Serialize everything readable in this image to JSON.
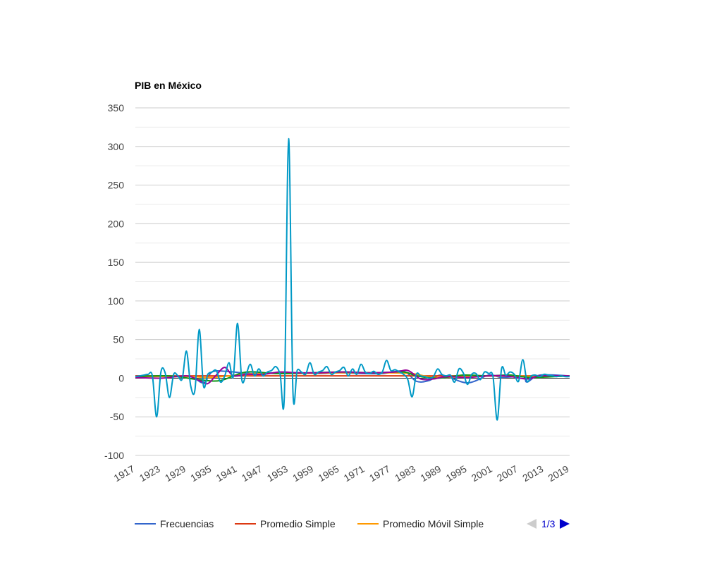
{
  "chart_data": {
    "type": "line",
    "title": "PIB en México",
    "xlabel": "",
    "ylabel": "",
    "xlim": [
      1917,
      2019
    ],
    "ylim": [
      -100,
      350
    ],
    "yticks": [
      -100,
      -50,
      0,
      50,
      100,
      150,
      200,
      250,
      300,
      350
    ],
    "xticks": [
      1917,
      1923,
      1929,
      1935,
      1941,
      1947,
      1953,
      1959,
      1965,
      1971,
      1977,
      1983,
      1989,
      1995,
      2001,
      2007,
      2013,
      2019
    ],
    "grid": true,
    "legend_position": "bottom",
    "legend": {
      "entries": [
        "Frecuencias",
        "Promedio Simple",
        "Promedio Móvil Simple"
      ],
      "page_label": "1/3"
    },
    "series": [
      {
        "name": "Frecuencias",
        "color": "#3366cc",
        "points": [
          [
            1917,
            3
          ],
          [
            1920,
            3
          ],
          [
            1925,
            2
          ],
          [
            1930,
            2
          ],
          [
            1933,
            -6
          ],
          [
            1935,
            8
          ],
          [
            1938,
            9
          ],
          [
            1942,
            7
          ],
          [
            1945,
            6
          ],
          [
            1950,
            7
          ],
          [
            1955,
            7
          ],
          [
            1960,
            6
          ],
          [
            1965,
            7
          ],
          [
            1970,
            6
          ],
          [
            1975,
            6
          ],
          [
            1980,
            9
          ],
          [
            1983,
            -4
          ],
          [
            1986,
            -3
          ],
          [
            1989,
            4
          ],
          [
            1995,
            -6
          ],
          [
            2000,
            4
          ],
          [
            2003,
            1
          ],
          [
            2008,
            2
          ],
          [
            2009,
            -5
          ],
          [
            2012,
            4
          ],
          [
            2019,
            3
          ]
        ]
      },
      {
        "name": "Promedio Simple",
        "color": "#dc3912",
        "points": [
          [
            1917,
            3
          ],
          [
            2019,
            3
          ]
        ]
      },
      {
        "name": "Promedio Móvil Simple",
        "color": "#ff9900",
        "points": [
          [
            1917,
            2
          ],
          [
            1930,
            2
          ],
          [
            1935,
            1
          ],
          [
            1945,
            6
          ],
          [
            1955,
            6
          ],
          [
            1965,
            7
          ],
          [
            1975,
            7
          ],
          [
            1982,
            6
          ],
          [
            1987,
            1
          ],
          [
            1995,
            2
          ],
          [
            2005,
            3
          ],
          [
            2012,
            2
          ],
          [
            2019,
            3
          ]
        ]
      },
      {
        "color": "#109618",
        "points": [
          [
            1917,
            2
          ],
          [
            1925,
            3
          ],
          [
            1932,
            -2
          ],
          [
            1937,
            -3
          ],
          [
            1943,
            8
          ],
          [
            1950,
            6
          ],
          [
            1958,
            7
          ],
          [
            1966,
            8
          ],
          [
            1973,
            7
          ],
          [
            1980,
            8
          ],
          [
            1983,
            3
          ],
          [
            1988,
            0
          ],
          [
            1994,
            4
          ],
          [
            2000,
            3
          ],
          [
            2005,
            4
          ],
          [
            2010,
            1
          ],
          [
            2019,
            3
          ]
        ]
      },
      {
        "color": "#990099",
        "points": [
          [
            1917,
            1
          ],
          [
            1923,
            0
          ],
          [
            1929,
            3
          ],
          [
            1932,
            -3
          ],
          [
            1934,
            -7
          ],
          [
            1936,
            4
          ],
          [
            1938,
            14
          ],
          [
            1940,
            3
          ],
          [
            1943,
            5
          ],
          [
            1947,
            5
          ],
          [
            1951,
            8
          ],
          [
            1955,
            7
          ],
          [
            1960,
            7
          ],
          [
            1966,
            8
          ],
          [
            1972,
            7
          ],
          [
            1978,
            8
          ],
          [
            1981,
            10
          ],
          [
            1984,
            -1
          ],
          [
            1987,
            -1
          ],
          [
            1990,
            2
          ],
          [
            1995,
            1
          ],
          [
            2000,
            3
          ],
          [
            2004,
            3
          ],
          [
            2009,
            -1
          ],
          [
            2012,
            3
          ],
          [
            2019,
            3
          ]
        ]
      },
      {
        "color": "#0099c6",
        "points": [
          [
            1917,
            2
          ],
          [
            1919,
            4
          ],
          [
            1920,
            5
          ],
          [
            1921,
            3
          ],
          [
            1922,
            -50
          ],
          [
            1923,
            8
          ],
          [
            1924,
            7
          ],
          [
            1925,
            -25
          ],
          [
            1926,
            5
          ],
          [
            1927,
            3
          ],
          [
            1928,
            -1
          ],
          [
            1929,
            35
          ],
          [
            1930,
            -10
          ],
          [
            1931,
            -15
          ],
          [
            1932,
            63
          ],
          [
            1933,
            -10
          ],
          [
            1934,
            5
          ],
          [
            1935,
            8
          ],
          [
            1936,
            10
          ],
          [
            1937,
            -5
          ],
          [
            1938,
            3
          ],
          [
            1939,
            20
          ],
          [
            1940,
            2
          ],
          [
            1941,
            71
          ],
          [
            1942,
            -2
          ],
          [
            1943,
            5
          ],
          [
            1944,
            18
          ],
          [
            1945,
            3
          ],
          [
            1946,
            12
          ],
          [
            1947,
            3
          ],
          [
            1948,
            8
          ],
          [
            1949,
            10
          ],
          [
            1950,
            15
          ],
          [
            1951,
            5
          ],
          [
            1952,
            -22
          ],
          [
            1953,
            310
          ],
          [
            1954,
            -16
          ],
          [
            1955,
            10
          ],
          [
            1956,
            8
          ],
          [
            1957,
            5
          ],
          [
            1958,
            20
          ],
          [
            1959,
            5
          ],
          [
            1960,
            8
          ],
          [
            1961,
            10
          ],
          [
            1962,
            15
          ],
          [
            1963,
            5
          ],
          [
            1964,
            8
          ],
          [
            1965,
            10
          ],
          [
            1966,
            14
          ],
          [
            1967,
            3
          ],
          [
            1968,
            12
          ],
          [
            1969,
            5
          ],
          [
            1970,
            18
          ],
          [
            1971,
            8
          ],
          [
            1972,
            6
          ],
          [
            1973,
            9
          ],
          [
            1974,
            5
          ],
          [
            1975,
            8
          ],
          [
            1976,
            23
          ],
          [
            1977,
            10
          ],
          [
            1978,
            11
          ],
          [
            1979,
            8
          ],
          [
            1980,
            5
          ],
          [
            1981,
            -2
          ],
          [
            1982,
            -24
          ],
          [
            1983,
            5
          ],
          [
            1984,
            3
          ],
          [
            1985,
            2
          ],
          [
            1986,
            0
          ],
          [
            1987,
            2
          ],
          [
            1988,
            12
          ],
          [
            1989,
            5
          ],
          [
            1990,
            3
          ],
          [
            1991,
            4
          ],
          [
            1992,
            -5
          ],
          [
            1993,
            12
          ],
          [
            1994,
            7
          ],
          [
            1995,
            -8
          ],
          [
            1996,
            5
          ],
          [
            1997,
            6
          ],
          [
            1998,
            -2
          ],
          [
            1999,
            8
          ],
          [
            2000,
            6
          ],
          [
            2001,
            2
          ],
          [
            2002,
            -54
          ],
          [
            2003,
            12
          ],
          [
            2004,
            4
          ],
          [
            2005,
            8
          ],
          [
            2006,
            5
          ],
          [
            2007,
            -4
          ],
          [
            2008,
            24
          ],
          [
            2009,
            -4
          ],
          [
            2010,
            3
          ],
          [
            2011,
            4
          ],
          [
            2012,
            2
          ],
          [
            2013,
            5
          ],
          [
            2014,
            4
          ],
          [
            2015,
            3
          ],
          [
            2016,
            2
          ],
          [
            2017,
            3
          ],
          [
            2018,
            2
          ],
          [
            2019,
            2
          ]
        ]
      }
    ]
  }
}
